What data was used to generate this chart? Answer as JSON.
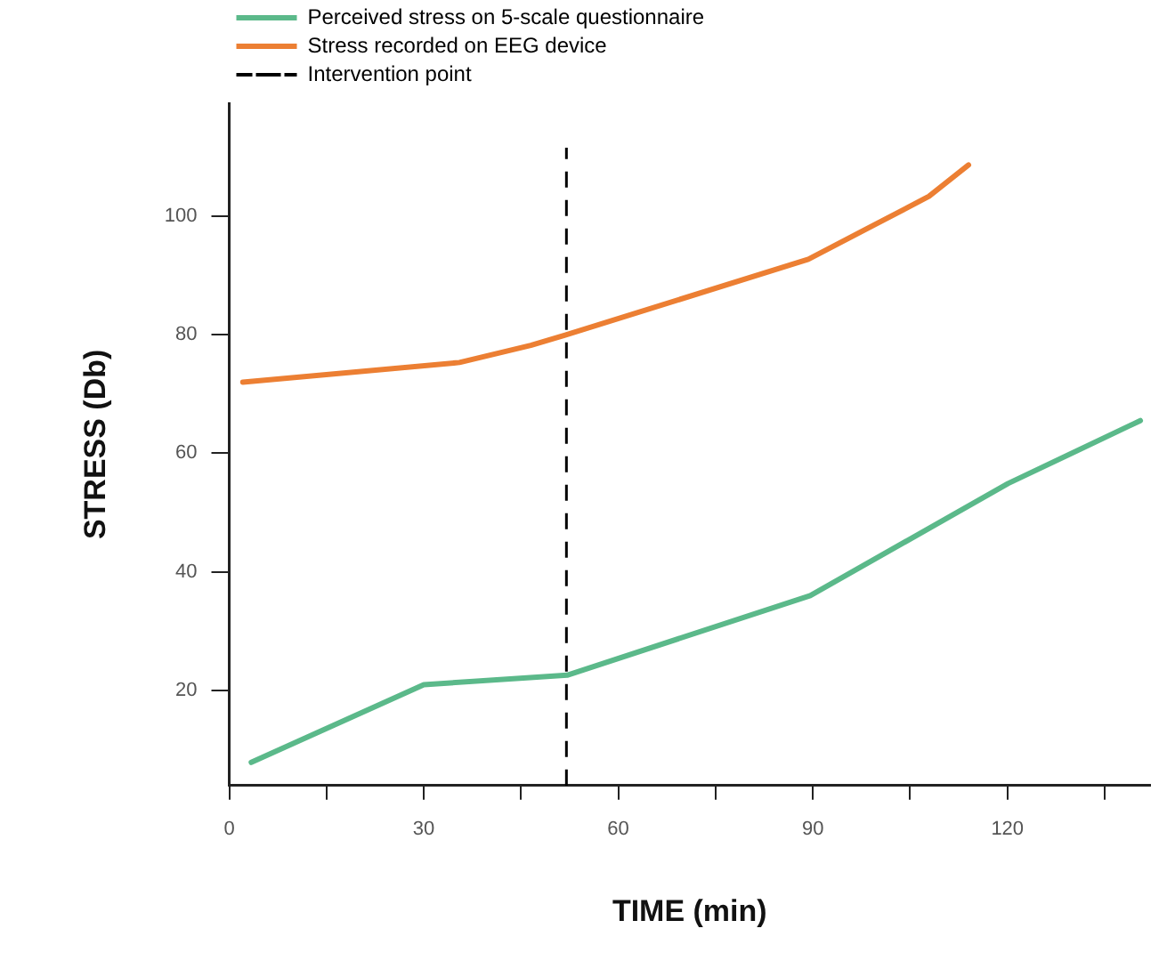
{
  "chart_data": {
    "type": "line",
    "xlabel": "TIME (min)",
    "ylabel": "STRESS (Db)",
    "xlim": [
      0,
      142
    ],
    "ylim": [
      4,
      119
    ],
    "xticks": [
      0,
      {
        "value": 15,
        "label": null
      },
      30,
      {
        "value": 45,
        "label": null
      },
      60,
      {
        "value": 75,
        "label": null
      },
      90,
      {
        "value": 105,
        "label": null
      },
      120,
      {
        "value": 135,
        "label": null
      }
    ],
    "yticks": [
      20,
      40,
      60,
      80,
      100
    ],
    "grid": false,
    "legend": "top left",
    "marker": "none",
    "line_style": "solid",
    "series": [
      {
        "name": "Perceived stress on 5-scale questionnaire",
        "color": "#5bb98a",
        "x": [
          3.4,
          30,
          52.1,
          89.6,
          120.1,
          140.5
        ],
        "values": [
          7.9,
          21,
          22.6,
          36,
          54.9,
          65.5
        ]
      },
      {
        "name": "Stress recorded on EEG device",
        "color": "#ec7f33",
        "x": [
          2.1,
          35.5,
          46.5,
          51.8,
          89.3,
          107.9,
          114
        ],
        "values": [
          72,
          75.3,
          78.2,
          79.9,
          92.7,
          103.3,
          108.6
        ]
      }
    ],
    "ref_lines": [
      {
        "axis": "x",
        "value": 52,
        "label": "Intervention point",
        "color": "#000000",
        "line_style": "dashed"
      }
    ]
  }
}
